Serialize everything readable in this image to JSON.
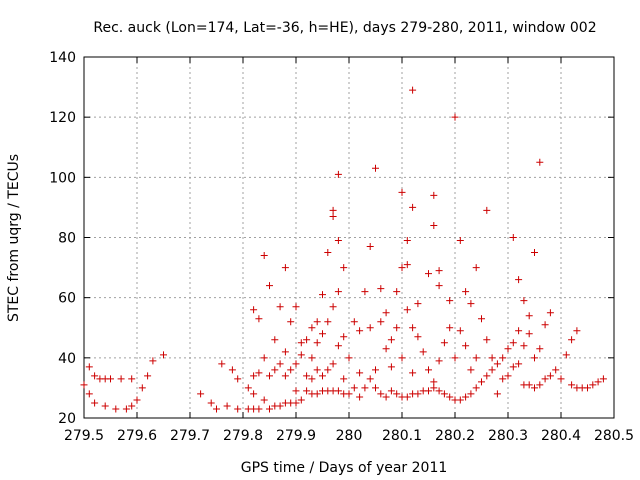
{
  "chart_data": {
    "type": "scatter",
    "title": "Rec. auck (Lon=174, Lat=-36, h=HE), days 279-280, 2011, window 002",
    "xlabel": "GPS time / Days of year 2011",
    "ylabel": "STEC from uqrg / TECUs",
    "xlim": [
      279.5,
      280.5
    ],
    "ylim": [
      20,
      140
    ],
    "xticks": [
      "279.5",
      "279.6",
      "279.7",
      "279.8",
      "279.9",
      "280",
      "280.1",
      "280.2",
      "280.3",
      "280.4",
      "280.5"
    ],
    "yticks": [
      "20",
      "40",
      "60",
      "80",
      "100",
      "120",
      "140"
    ],
    "grid": true,
    "marker": "+",
    "marker_color": "#cc0000",
    "points": [
      [
        279.5,
        31
      ],
      [
        279.51,
        37
      ],
      [
        279.51,
        28
      ],
      [
        279.52,
        34
      ],
      [
        279.52,
        25
      ],
      [
        279.53,
        33
      ],
      [
        279.54,
        33
      ],
      [
        279.54,
        24
      ],
      [
        279.55,
        33
      ],
      [
        279.56,
        23
      ],
      [
        279.57,
        33
      ],
      [
        279.58,
        23
      ],
      [
        279.59,
        33
      ],
      [
        279.59,
        24
      ],
      [
        279.6,
        26
      ],
      [
        279.61,
        30
      ],
      [
        279.62,
        34
      ],
      [
        279.63,
        39
      ],
      [
        279.65,
        41
      ],
      [
        279.72,
        28
      ],
      [
        279.74,
        25
      ],
      [
        279.75,
        23
      ],
      [
        279.76,
        38
      ],
      [
        279.77,
        24
      ],
      [
        279.78,
        36
      ],
      [
        279.79,
        23
      ],
      [
        279.79,
        33
      ],
      [
        279.81,
        23
      ],
      [
        279.81,
        30
      ],
      [
        279.82,
        23
      ],
      [
        279.82,
        28
      ],
      [
        279.82,
        34
      ],
      [
        279.82,
        56
      ],
      [
        279.83,
        23
      ],
      [
        279.83,
        35
      ],
      [
        279.83,
        53
      ],
      [
        279.84,
        74
      ],
      [
        279.84,
        26
      ],
      [
        279.84,
        40
      ],
      [
        279.85,
        23
      ],
      [
        279.85,
        34
      ],
      [
        279.85,
        64
      ],
      [
        279.86,
        24
      ],
      [
        279.86,
        36
      ],
      [
        279.86,
        46
      ],
      [
        279.87,
        24
      ],
      [
        279.87,
        38
      ],
      [
        279.87,
        57
      ],
      [
        279.88,
        25
      ],
      [
        279.88,
        34
      ],
      [
        279.88,
        42
      ],
      [
        279.88,
        70
      ],
      [
        279.89,
        25
      ],
      [
        279.89,
        36
      ],
      [
        279.89,
        52
      ],
      [
        279.9,
        25
      ],
      [
        279.9,
        38
      ],
      [
        279.9,
        57
      ],
      [
        279.9,
        29
      ],
      [
        279.91,
        26
      ],
      [
        279.91,
        41
      ],
      [
        279.91,
        45
      ],
      [
        279.92,
        29
      ],
      [
        279.92,
        34
      ],
      [
        279.92,
        46
      ],
      [
        279.93,
        28
      ],
      [
        279.93,
        33
      ],
      [
        279.93,
        40
      ],
      [
        279.93,
        50
      ],
      [
        279.94,
        28
      ],
      [
        279.94,
        36
      ],
      [
        279.94,
        45
      ],
      [
        279.94,
        52
      ],
      [
        279.95,
        29
      ],
      [
        279.95,
        34
      ],
      [
        279.95,
        48
      ],
      [
        279.95,
        61
      ],
      [
        279.96,
        29
      ],
      [
        279.96,
        36
      ],
      [
        279.96,
        75
      ],
      [
        279.96,
        52
      ],
      [
        279.97,
        29
      ],
      [
        279.97,
        38
      ],
      [
        279.97,
        57
      ],
      [
        279.97,
        87
      ],
      [
        279.97,
        89
      ],
      [
        279.98,
        29
      ],
      [
        279.98,
        44
      ],
      [
        279.98,
        62
      ],
      [
        279.98,
        79
      ],
      [
        279.98,
        101
      ],
      [
        279.99,
        28
      ],
      [
        279.99,
        33
      ],
      [
        279.99,
        47
      ],
      [
        279.99,
        70
      ],
      [
        280.0,
        28
      ],
      [
        280.0,
        40
      ],
      [
        280.01,
        30
      ],
      [
        280.01,
        52
      ],
      [
        280.02,
        27
      ],
      [
        280.02,
        35
      ],
      [
        280.02,
        49
      ],
      [
        280.03,
        30
      ],
      [
        280.03,
        62
      ],
      [
        280.04,
        33
      ],
      [
        280.04,
        50
      ],
      [
        280.04,
        77
      ],
      [
        280.05,
        30
      ],
      [
        280.05,
        36
      ],
      [
        280.05,
        103
      ],
      [
        280.06,
        28
      ],
      [
        280.06,
        52
      ],
      [
        280.06,
        63
      ],
      [
        280.07,
        27
      ],
      [
        280.07,
        43
      ],
      [
        280.07,
        55
      ],
      [
        280.08,
        29
      ],
      [
        280.08,
        37
      ],
      [
        280.08,
        46
      ],
      [
        280.09,
        28
      ],
      [
        280.09,
        50
      ],
      [
        280.09,
        62
      ],
      [
        280.1,
        27
      ],
      [
        280.1,
        40
      ],
      [
        280.1,
        70
      ],
      [
        280.1,
        95
      ],
      [
        280.11,
        27
      ],
      [
        280.11,
        56
      ],
      [
        280.11,
        71
      ],
      [
        280.11,
        79
      ],
      [
        280.12,
        28
      ],
      [
        280.12,
        35
      ],
      [
        280.12,
        50
      ],
      [
        280.12,
        90
      ],
      [
        280.12,
        129
      ],
      [
        280.13,
        28
      ],
      [
        280.13,
        47
      ],
      [
        280.13,
        58
      ],
      [
        280.14,
        29
      ],
      [
        280.14,
        42
      ],
      [
        280.15,
        29
      ],
      [
        280.15,
        36
      ],
      [
        280.15,
        68
      ],
      [
        280.16,
        30
      ],
      [
        280.16,
        32
      ],
      [
        280.16,
        84
      ],
      [
        280.16,
        94
      ],
      [
        280.17,
        29
      ],
      [
        280.17,
        39
      ],
      [
        280.17,
        64
      ],
      [
        280.17,
        69
      ],
      [
        280.18,
        28
      ],
      [
        280.18,
        45
      ],
      [
        280.19,
        27
      ],
      [
        280.19,
        50
      ],
      [
        280.19,
        59
      ],
      [
        280.2,
        26
      ],
      [
        280.2,
        40
      ],
      [
        280.2,
        120
      ],
      [
        280.21,
        26
      ],
      [
        280.21,
        49
      ],
      [
        280.21,
        79
      ],
      [
        280.22,
        27
      ],
      [
        280.22,
        44
      ],
      [
        280.22,
        62
      ],
      [
        280.23,
        28
      ],
      [
        280.23,
        36
      ],
      [
        280.23,
        58
      ],
      [
        280.24,
        30
      ],
      [
        280.24,
        40
      ],
      [
        280.24,
        70
      ],
      [
        280.25,
        32
      ],
      [
        280.25,
        53
      ],
      [
        280.26,
        34
      ],
      [
        280.26,
        46
      ],
      [
        280.26,
        89
      ],
      [
        280.27,
        36
      ],
      [
        280.27,
        40
      ],
      [
        280.28,
        38
      ],
      [
        280.28,
        28
      ],
      [
        280.29,
        40
      ],
      [
        280.29,
        33
      ],
      [
        280.3,
        34
      ],
      [
        280.3,
        43
      ],
      [
        280.31,
        37
      ],
      [
        280.31,
        80
      ],
      [
        280.31,
        45
      ],
      [
        280.32,
        38
      ],
      [
        280.32,
        49
      ],
      [
        280.32,
        66
      ],
      [
        280.33,
        31
      ],
      [
        280.33,
        44
      ],
      [
        280.33,
        59
      ],
      [
        280.34,
        31
      ],
      [
        280.34,
        48
      ],
      [
        280.34,
        54
      ],
      [
        280.35,
        30
      ],
      [
        280.35,
        40
      ],
      [
        280.35,
        75
      ],
      [
        280.36,
        31
      ],
      [
        280.36,
        43
      ],
      [
        280.36,
        105
      ],
      [
        280.37,
        33
      ],
      [
        280.37,
        51
      ],
      [
        280.38,
        34
      ],
      [
        280.38,
        55
      ],
      [
        280.39,
        36
      ],
      [
        280.4,
        33
      ],
      [
        280.41,
        41
      ],
      [
        280.42,
        46
      ],
      [
        280.42,
        31
      ],
      [
        280.43,
        49
      ],
      [
        280.43,
        30
      ],
      [
        280.44,
        30
      ],
      [
        280.45,
        30
      ],
      [
        280.46,
        31
      ],
      [
        280.47,
        32
      ],
      [
        280.48,
        33
      ]
    ]
  }
}
